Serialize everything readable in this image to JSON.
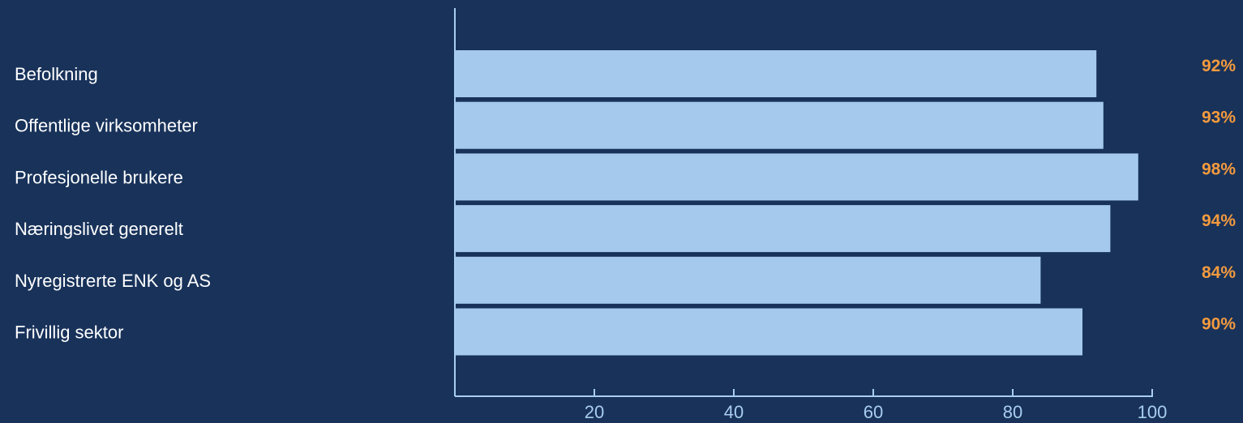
{
  "chart_data": {
    "type": "bar",
    "orientation": "horizontal",
    "categories": [
      "Befolkning",
      "Offentlige virksomheter",
      "Profesjonelle brukere",
      "Næringslivet generelt",
      "Nyregistrerte ENK og AS",
      "Frivillig sektor"
    ],
    "values": [
      92,
      93,
      98,
      94,
      84,
      90
    ],
    "value_labels": [
      "92%",
      "93%",
      "98%",
      "94%",
      "84%",
      "90%"
    ],
    "xticks": [
      20,
      40,
      60,
      80,
      100
    ],
    "xlim": [
      0,
      100
    ],
    "title": "",
    "xlabel": "",
    "ylabel": "",
    "grid": false,
    "legend": "none"
  },
  "colors": {
    "background": "#18325a",
    "bar": "#a5c9ec",
    "axis": "#a9cdee",
    "value_label": "#f39a3e",
    "category_label": "#ffffff"
  }
}
